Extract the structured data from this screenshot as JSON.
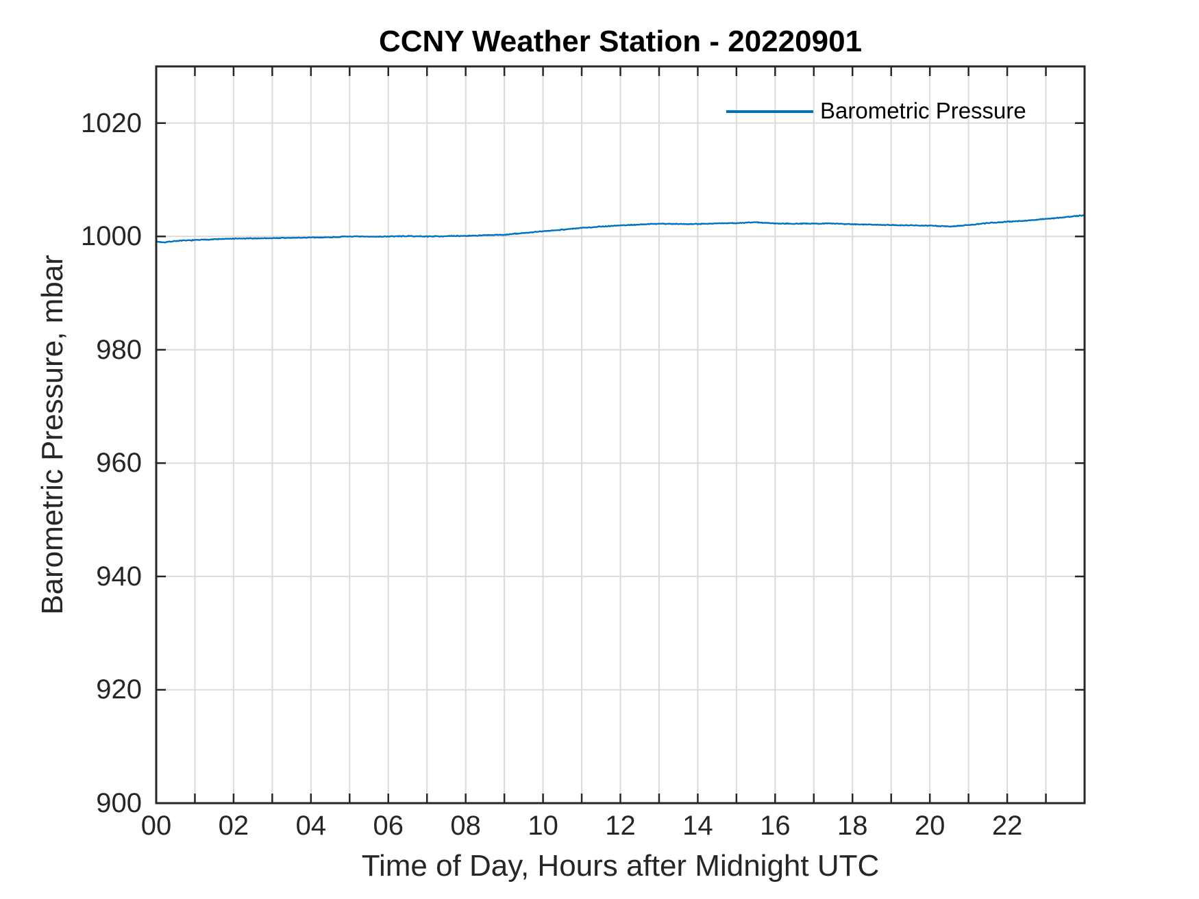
{
  "window": {
    "background": "#ffffff"
  },
  "colors": {
    "line": "#0072BD",
    "axis": "#262626",
    "grid": "#DBDBDB",
    "tick_text": "#262626",
    "title_text": "#000000"
  },
  "chart_data": {
    "type": "line",
    "title": "CCNY Weather Station - 20220901",
    "xlabel": "Time of Day, Hours after Midnight UTC",
    "ylabel": "Barometric Pressure, mbar",
    "xlim": [
      0,
      24
    ],
    "ylim": [
      900,
      1030
    ],
    "grid": true,
    "x_gridline_step_hours": 1,
    "xticks": [
      0,
      2,
      4,
      6,
      8,
      10,
      12,
      14,
      16,
      18,
      20,
      22
    ],
    "xtick_labels": [
      "00",
      "02",
      "04",
      "06",
      "08",
      "10",
      "12",
      "14",
      "16",
      "18",
      "20",
      "22"
    ],
    "yticks": [
      900,
      920,
      940,
      960,
      980,
      1000,
      1020
    ],
    "ytick_labels": [
      "900",
      "920",
      "940",
      "960",
      "980",
      "1000",
      "1020"
    ],
    "legend": {
      "location": "upper right",
      "box": false,
      "entries": [
        "Barometric Pressure"
      ]
    },
    "series": [
      {
        "name": "Barometric Pressure",
        "color": "#0072BD",
        "x": [
          0,
          0.2,
          0.5,
          1,
          1.5,
          2,
          2.5,
          3,
          3.5,
          4,
          4.5,
          5,
          5.5,
          6,
          6.5,
          7,
          7.5,
          8,
          8.5,
          9,
          9.5,
          10,
          10.5,
          11,
          11.5,
          12,
          12.5,
          13,
          13.5,
          14,
          14.5,
          15,
          15.5,
          16,
          16.5,
          17,
          17.5,
          18,
          18.5,
          19,
          19.5,
          20,
          20.5,
          21,
          21.5,
          22,
          22.5,
          23,
          23.5,
          24
        ],
        "y": [
          999.1,
          998.95,
          999.2,
          999.35,
          999.5,
          999.6,
          999.65,
          999.7,
          999.75,
          999.8,
          999.85,
          1000.0,
          999.95,
          1000.0,
          1000.05,
          1000.0,
          1000.05,
          1000.1,
          1000.2,
          1000.3,
          1000.6,
          1000.9,
          1001.2,
          1001.5,
          1001.75,
          1001.95,
          1002.1,
          1002.25,
          1002.2,
          1002.2,
          1002.3,
          1002.35,
          1002.5,
          1002.3,
          1002.25,
          1002.25,
          1002.3,
          1002.15,
          1002.1,
          1002.0,
          1001.95,
          1001.9,
          1001.75,
          1002.0,
          1002.35,
          1002.6,
          1002.8,
          1003.1,
          1003.4,
          1003.75
        ],
        "units": "mbar"
      }
    ]
  }
}
